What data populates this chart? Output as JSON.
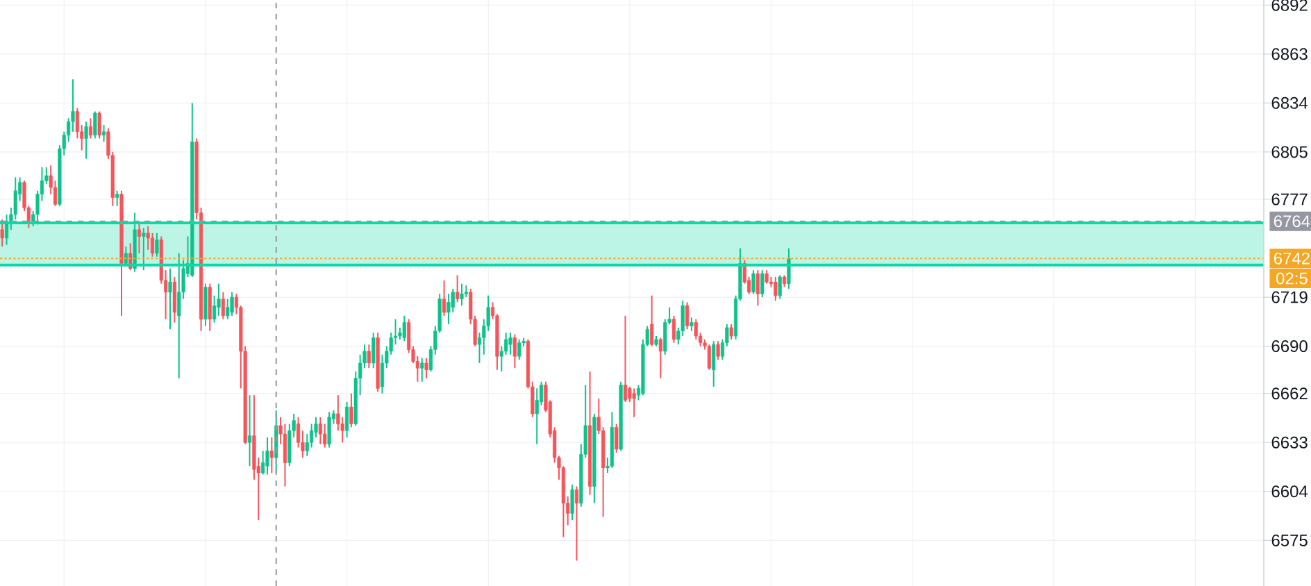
{
  "chart_data": {
    "type": "candlestick",
    "categories": [
      null,
      null,
      null,
      null,
      null,
      null,
      null,
      null,
      null,
      null,
      null,
      null,
      null,
      null,
      null,
      null,
      null,
      null,
      null,
      null,
      null,
      null,
      null,
      null,
      null,
      null,
      null,
      null,
      null,
      null,
      null,
      null,
      null,
      null,
      null,
      null,
      null,
      null,
      null,
      null,
      null,
      null,
      null,
      null,
      null,
      null,
      null,
      null,
      null,
      null,
      null,
      null,
      null,
      null,
      null,
      null,
      null,
      null,
      null,
      null,
      null,
      null,
      null,
      null,
      null,
      null,
      null,
      null,
      null,
      null,
      null,
      null,
      null,
      null,
      null,
      null,
      null,
      null,
      null,
      null,
      null,
      null,
      null,
      null,
      null,
      null,
      null,
      null,
      null,
      null,
      null,
      null,
      null,
      null,
      null,
      null,
      null,
      null,
      null,
      null,
      null,
      null,
      null,
      null,
      null,
      null,
      null,
      null,
      null,
      null,
      null,
      null,
      null,
      null,
      null,
      null,
      null,
      null,
      null,
      null,
      null,
      null,
      null,
      null,
      null,
      null,
      null,
      null,
      null,
      null,
      null,
      null,
      null,
      null,
      null,
      null,
      null,
      null,
      null,
      null,
      null,
      null,
      null,
      null,
      null,
      null,
      null,
      null,
      null,
      null,
      null,
      null,
      null,
      null,
      null,
      null,
      null,
      null,
      null,
      null,
      null,
      null,
      null,
      null,
      null,
      null,
      null,
      null,
      null,
      null,
      null,
      null,
      null,
      null,
      null,
      null,
      null,
      null,
      null,
      null,
      null,
      null,
      null,
      null,
      null,
      null,
      null,
      null,
      null,
      null,
      null,
      null,
      null,
      null,
      null,
      null,
      null,
      null,
      null,
      null,
      null,
      null,
      null,
      null,
      null,
      null,
      null,
      null,
      null,
      null,
      null,
      null,
      null,
      null,
      null,
      null,
      null,
      null,
      null,
      null,
      null,
      null,
      null,
      null,
      null,
      null,
      null,
      null,
      null,
      null,
      null,
      null,
      null,
      null,
      null,
      null,
      null,
      null,
      null,
      null,
      null,
      null,
      null,
      null,
      null,
      null,
      null,
      null,
      null,
      null,
      null,
      null,
      null,
      null,
      null,
      null,
      null,
      null,
      null,
      null,
      null,
      null,
      null,
      null,
      null,
      null,
      null,
      null,
      null,
      null,
      null,
      null,
      null,
      null,
      null,
      null,
      null,
      null,
      null,
      null,
      null,
      null,
      null,
      null,
      null,
      null
    ],
    "ohlc": [
      [
        6759,
        6765,
        6749,
        6754
      ],
      [
        6754,
        6768,
        6750,
        6764
      ],
      [
        6764,
        6772,
        6759,
        6768
      ],
      [
        6768,
        6790,
        6765,
        6782
      ],
      [
        6780,
        6790,
        6776,
        6787
      ],
      [
        6787,
        6788,
        6770,
        6772
      ],
      [
        6772,
        6773,
        6760,
        6764
      ],
      [
        6764,
        6770,
        6761,
        6768
      ],
      [
        6768,
        6782,
        6762,
        6780
      ],
      [
        6780,
        6796,
        6776,
        6788
      ],
      [
        6788,
        6796,
        6786,
        6791
      ],
      [
        6791,
        6797,
        6780,
        6784
      ],
      [
        6784,
        6788,
        6773,
        6774
      ],
      [
        6774,
        6809,
        6773,
        6807
      ],
      [
        6807,
        6817,
        6803,
        6815
      ],
      [
        6815,
        6825,
        6811,
        6823
      ],
      [
        6823,
        6848,
        6817,
        6829
      ],
      [
        6829,
        6831,
        6813,
        6817
      ],
      [
        6817,
        6821,
        6806,
        6813
      ],
      [
        6813,
        6823,
        6801,
        6820
      ],
      [
        6820,
        6825,
        6813,
        6815
      ],
      [
        6815,
        6829,
        6813,
        6828
      ],
      [
        6828,
        6829,
        6813,
        6815
      ],
      [
        6815,
        6821,
        6811,
        6817
      ],
      [
        6817,
        6819,
        6801,
        6803
      ],
      [
        6803,
        6805,
        6773,
        6778
      ],
      [
        6778,
        6782,
        6773,
        6780
      ],
      [
        6780,
        6782,
        6708,
        6739
      ],
      [
        6739,
        6749,
        6737,
        6745
      ],
      [
        6745,
        6751,
        6735,
        6736
      ],
      [
        6736,
        6769,
        6734,
        6759
      ],
      [
        6759,
        6764,
        6745,
        6755
      ],
      [
        6755,
        6760,
        6735,
        6757
      ],
      [
        6757,
        6761,
        6747,
        6754
      ],
      [
        6754,
        6757,
        6743,
        6745
      ],
      [
        6745,
        6757,
        6743,
        6753
      ],
      [
        6753,
        6755,
        6727,
        6729
      ],
      [
        6729,
        6735,
        6706,
        6722
      ],
      [
        6722,
        6736,
        6700,
        6728
      ],
      [
        6728,
        6731,
        6704,
        6710
      ],
      [
        6708,
        6745,
        6671,
        6722
      ],
      [
        6722,
        6741,
        6718,
        6736
      ],
      [
        6733,
        6755,
        6731,
        6739
      ],
      [
        6732,
        6834,
        6731,
        6811
      ],
      [
        6811,
        6813,
        6765,
        6769
      ],
      [
        6769,
        6772,
        6699,
        6706
      ],
      [
        6706,
        6727,
        6702,
        6725
      ],
      [
        6725,
        6727,
        6699,
        6706
      ],
      [
        6706,
        6720,
        6704,
        6714
      ],
      [
        6713,
        6727,
        6708,
        6718
      ],
      [
        6718,
        6722,
        6706,
        6708
      ],
      [
        6708,
        6718,
        6706,
        6713
      ],
      [
        6710,
        6722,
        6708,
        6719
      ],
      [
        6719,
        6721,
        6709,
        6713
      ],
      [
        6713,
        6714,
        6665,
        6687
      ],
      [
        6687,
        6690,
        6632,
        6633
      ],
      [
        6633,
        6661,
        6619,
        6637
      ],
      [
        6637,
        6661,
        6611,
        6617
      ],
      [
        6619,
        6624,
        6587,
        6615
      ],
      [
        6615,
        6628,
        6614,
        6621
      ],
      [
        6619,
        6636,
        6614,
        6628
      ],
      [
        6628,
        6636,
        6615,
        6624
      ],
      [
        6624,
        6652,
        6615,
        6643
      ],
      [
        6643,
        6648,
        6632,
        6638
      ],
      [
        6638,
        6644,
        6607,
        6621
      ],
      [
        6621,
        6644,
        6619,
        6640
      ],
      [
        6640,
        6650,
        6636,
        6646
      ],
      [
        6644,
        6648,
        6630,
        6633
      ],
      [
        6633,
        6640,
        6624,
        6628
      ],
      [
        6628,
        6638,
        6625,
        6633
      ],
      [
        6633,
        6644,
        6630,
        6640
      ],
      [
        6639,
        6648,
        6636,
        6644
      ],
      [
        6644,
        6648,
        6632,
        6638
      ],
      [
        6638,
        6644,
        6630,
        6632
      ],
      [
        6632,
        6651,
        6630,
        6648
      ],
      [
        6647,
        6652,
        6644,
        6650
      ],
      [
        6650,
        6661,
        6640,
        6644
      ],
      [
        6644,
        6648,
        6633,
        6640
      ],
      [
        6640,
        6657,
        6636,
        6654
      ],
      [
        6654,
        6662,
        6642,
        6644
      ],
      [
        6644,
        6675,
        6643,
        6671
      ],
      [
        6671,
        6685,
        6661,
        6680
      ],
      [
        6680,
        6691,
        6677,
        6687
      ],
      [
        6687,
        6691,
        6677,
        6680
      ],
      [
        6680,
        6698,
        6677,
        6695
      ],
      [
        6695,
        6698,
        6663,
        6665
      ],
      [
        6666,
        6685,
        6662,
        6680
      ],
      [
        6680,
        6690,
        6677,
        6687
      ],
      [
        6687,
        6698,
        6685,
        6695
      ],
      [
        6695,
        6706,
        6691,
        6696
      ],
      [
        6696,
        6701,
        6694,
        6698
      ],
      [
        6695,
        6708,
        6693,
        6704
      ],
      [
        6704,
        6706,
        6686,
        6688
      ],
      [
        6688,
        6690,
        6680,
        6681
      ],
      [
        6681,
        6684,
        6669,
        6677
      ],
      [
        6677,
        6683,
        6669,
        6680
      ],
      [
        6680,
        6683,
        6671,
        6676
      ],
      [
        6676,
        6690,
        6675,
        6688
      ],
      [
        6688,
        6702,
        6685,
        6699
      ],
      [
        6699,
        6721,
        6698,
        6718
      ],
      [
        6718,
        6729,
        6708,
        6710
      ],
      [
        6710,
        6721,
        6703,
        6716
      ],
      [
        6713,
        6724,
        6710,
        6722
      ],
      [
        6722,
        6732,
        6716,
        6718
      ],
      [
        6718,
        6727,
        6714,
        6721
      ],
      [
        6721,
        6726,
        6719,
        6722
      ],
      [
        6722,
        6724,
        6703,
        6706
      ],
      [
        6706,
        6708,
        6690,
        6691
      ],
      [
        6691,
        6698,
        6680,
        6695
      ],
      [
        6695,
        6706,
        6685,
        6702
      ],
      [
        6702,
        6720,
        6699,
        6713
      ],
      [
        6713,
        6716,
        6706,
        6708
      ],
      [
        6708,
        6709,
        6676,
        6684
      ],
      [
        6684,
        6690,
        6675,
        6687
      ],
      [
        6687,
        6698,
        6685,
        6694
      ],
      [
        6691,
        6698,
        6685,
        6695
      ],
      [
        6695,
        6697,
        6677,
        6684
      ],
      [
        6684,
        6694,
        6682,
        6692
      ],
      [
        6692,
        6695,
        6690,
        6693
      ],
      [
        6693,
        6694,
        6665,
        6666
      ],
      [
        6666,
        6669,
        6648,
        6650
      ],
      [
        6650,
        6665,
        6632,
        6658
      ],
      [
        6657,
        6669,
        6655,
        6667
      ],
      [
        6667,
        6669,
        6651,
        6652
      ],
      [
        6657,
        6658,
        6636,
        6638
      ],
      [
        6640,
        6642,
        6621,
        6624
      ],
      [
        6624,
        6625,
        6611,
        6618
      ],
      [
        6618,
        6619,
        6577,
        6597
      ],
      [
        6597,
        6601,
        6584,
        6591
      ],
      [
        6591,
        6608,
        6587,
        6605
      ],
      [
        6605,
        6607,
        6563,
        6597
      ],
      [
        6597,
        6632,
        6595,
        6626
      ],
      [
        6626,
        6667,
        6624,
        6643
      ],
      [
        6643,
        6675,
        6602,
        6607
      ],
      [
        6607,
        6650,
        6597,
        6648
      ],
      [
        6648,
        6659,
        6638,
        6640
      ],
      [
        6640,
        6642,
        6589,
        6618
      ],
      [
        6618,
        6624,
        6615,
        6619
      ],
      [
        6619,
        6651,
        6618,
        6642
      ],
      [
        6642,
        6644,
        6627,
        6629
      ],
      [
        6629,
        6669,
        6628,
        6667
      ],
      [
        6667,
        6708,
        6657,
        6658
      ],
      [
        6665,
        6666,
        6657,
        6659
      ],
      [
        6662,
        6665,
        6648,
        6659
      ],
      [
        6661,
        6667,
        6658,
        6665
      ],
      [
        6662,
        6694,
        6661,
        6691
      ],
      [
        6691,
        6702,
        6690,
        6700
      ],
      [
        6703,
        6720,
        6690,
        6691
      ],
      [
        6691,
        6696,
        6690,
        6694
      ],
      [
        6694,
        6695,
        6671,
        6687
      ],
      [
        6687,
        6706,
        6685,
        6704
      ],
      [
        6704,
        6713,
        6703,
        6706
      ],
      [
        6706,
        6708,
        6692,
        6694
      ],
      [
        6694,
        6701,
        6691,
        6699
      ],
      [
        6699,
        6717,
        6696,
        6714
      ],
      [
        6714,
        6716,
        6700,
        6702
      ],
      [
        6702,
        6707,
        6699,
        6704
      ],
      [
        6704,
        6706,
        6694,
        6696
      ],
      [
        6696,
        6698,
        6690,
        6692
      ],
      [
        6692,
        6694,
        6688,
        6690
      ],
      [
        6690,
        6691,
        6676,
        6677
      ],
      [
        6676,
        6693,
        6666,
        6691
      ],
      [
        6691,
        6693,
        6682,
        6684
      ],
      [
        6684,
        6694,
        6682,
        6692
      ],
      [
        6692,
        6703,
        6690,
        6701
      ],
      [
        6701,
        6703,
        6694,
        6696
      ],
      [
        6696,
        6720,
        6694,
        6718
      ],
      [
        6718,
        6748,
        6717,
        6739
      ],
      [
        6739,
        6741,
        6727,
        6728
      ],
      [
        6729,
        6731,
        6721,
        6722
      ],
      [
        6722,
        6735,
        6721,
        6733
      ],
      [
        6733,
        6735,
        6714,
        6721
      ],
      [
        6721,
        6735,
        6719,
        6733
      ],
      [
        6733,
        6735,
        6727,
        6728
      ],
      [
        6728,
        6731,
        6725,
        6727
      ],
      [
        6728,
        6731,
        6717,
        6720
      ],
      [
        6720,
        6732,
        6718,
        6731
      ],
      [
        6731,
        6732,
        6725,
        6727
      ],
      [
        6727,
        6748,
        6724,
        6742
      ],
      null,
      null,
      null,
      null,
      null,
      null,
      null,
      null,
      null,
      null,
      null,
      null,
      null,
      null,
      null,
      null,
      null,
      null,
      null,
      null,
      null,
      null,
      null,
      null,
      null,
      null,
      null,
      null,
      null,
      null,
      null,
      null,
      null,
      null,
      null,
      null,
      null,
      null,
      null,
      null,
      null,
      null,
      null,
      null,
      null,
      null,
      null,
      null,
      null,
      null,
      null,
      null,
      null,
      null,
      null,
      null,
      null,
      null,
      null,
      null,
      null,
      null,
      null,
      null,
      null,
      null,
      null,
      null,
      null,
      null,
      null,
      null,
      null,
      null,
      null,
      null,
      null,
      null,
      null,
      null,
      null,
      null,
      null,
      null,
      null,
      null,
      null,
      null,
      null,
      null,
      null,
      null,
      null,
      null,
      null,
      null,
      null,
      null,
      null,
      null,
      null,
      null,
      null,
      null,
      null,
      null,
      null
    ],
    "colors": [
      "#f6545b",
      "#0fc28b",
      "#0fc28b",
      "#0fc28b",
      "#0fc28b",
      "#f6545b",
      "#f6545b",
      "#0fc28b",
      "#0fc28b",
      "#0fc28b",
      "#0fc28b",
      "#f6545b",
      "#f6545b",
      "#0fc28b",
      "#0fc28b",
      "#0fc28b",
      "#0fc28b",
      "#f6545b",
      "#f6545b",
      "#0fc28b",
      "#f6545b",
      "#0fc28b",
      "#f6545b",
      "#0fc28b",
      "#f6545b",
      "#f6545b",
      "#0fc28b",
      "#f6545b",
      "#0fc28b",
      "#f6545b",
      "#0fc28b",
      "#f6545b",
      "#0fc28b",
      "#f6545b",
      "#f6545b",
      "#0fc28b",
      "#f6545b",
      "#f6545b",
      "#0fc28b",
      "#f6545b",
      "#0fc28b",
      "#0fc28b",
      "#0fc28b",
      "#0fc28b",
      "#f6545b",
      "#f6545b",
      "#0fc28b",
      "#f6545b",
      "#0fc28b",
      "#0fc28b",
      "#f6545b",
      "#0fc28b",
      "#0fc28b",
      "#f6545b",
      "#f6545b",
      "#f6545b",
      "#0fc28b",
      "#f6545b",
      "#f6545b",
      "#0fc28b",
      "#0fc28b",
      "#f6545b",
      "#0fc28b",
      "#f6545b",
      "#f6545b",
      "#0fc28b",
      "#0fc28b",
      "#f6545b",
      "#f6545b",
      "#0fc28b",
      "#0fc28b",
      "#0fc28b",
      "#f6545b",
      "#f6545b",
      "#0fc28b",
      "#0fc28b",
      "#f6545b",
      "#f6545b",
      "#0fc28b",
      "#f6545b",
      "#0fc28b",
      "#0fc28b",
      "#0fc28b",
      "#f6545b",
      "#0fc28b",
      "#f6545b",
      "#0fc28b",
      "#0fc28b",
      "#0fc28b",
      "#0fc28b",
      "#0fc28b",
      "#0fc28b",
      "#f6545b",
      "#f6545b",
      "#f6545b",
      "#0fc28b",
      "#f6545b",
      "#0fc28b",
      "#0fc28b",
      "#0fc28b",
      "#f6545b",
      "#0fc28b",
      "#0fc28b",
      "#f6545b",
      "#0fc28b",
      "#0fc28b",
      "#f6545b",
      "#f6545b",
      "#0fc28b",
      "#0fc28b",
      "#0fc28b",
      "#f6545b",
      "#f6545b",
      "#0fc28b",
      "#0fc28b",
      "#0fc28b",
      "#f6545b",
      "#0fc28b",
      "#0fc28b",
      "#f6545b",
      "#f6545b",
      "#0fc28b",
      "#0fc28b",
      "#f6545b",
      "#f6545b",
      "#f6545b",
      "#f6545b",
      "#f6545b",
      "#f6545b",
      "#0fc28b",
      "#f6545b",
      "#0fc28b",
      "#0fc28b",
      "#f6545b",
      "#0fc28b",
      "#f6545b",
      "#f6545b",
      "#0fc28b",
      "#0fc28b",
      "#f6545b",
      "#0fc28b",
      "#f6545b",
      "#f6545b",
      "#f6545b",
      "#0fc28b",
      "#0fc28b",
      "#0fc28b",
      "#f6545b",
      "#0fc28b",
      "#f6545b",
      "#0fc28b",
      "#0fc28b",
      "#f6545b",
      "#0fc28b",
      "#0fc28b",
      "#f6545b",
      "#0fc28b",
      "#f6545b",
      "#f6545b",
      "#f6545b",
      "#f6545b",
      "#0fc28b",
      "#f6545b",
      "#0fc28b",
      "#0fc28b",
      "#f6545b",
      "#0fc28b",
      "#0fc28b",
      "#f6545b",
      "#f6545b",
      "#0fc28b",
      "#f6545b",
      "#0fc28b",
      "#f6545b",
      "#f6545b",
      "#f6545b",
      "#0fc28b",
      "#f6545b",
      "#0fc28b",
      null,
      null,
      null,
      null,
      null,
      null,
      null,
      null,
      null,
      null,
      null,
      null,
      null,
      null,
      null,
      null,
      null,
      null,
      null,
      null,
      null,
      null,
      null,
      null,
      null,
      null,
      null,
      null,
      null,
      null,
      null,
      null,
      null,
      null,
      null,
      null,
      null,
      null,
      null,
      null,
      null,
      null,
      null,
      null,
      null,
      null,
      null,
      null,
      null,
      null,
      null,
      null,
      null,
      null,
      null,
      null,
      null,
      null,
      null,
      null,
      null,
      null,
      null,
      null,
      null,
      null,
      null,
      null,
      null,
      null,
      null,
      null,
      null,
      null,
      null,
      null,
      null,
      null,
      null,
      null,
      null,
      null,
      null,
      null,
      null,
      null,
      null,
      null,
      null,
      null,
      null,
      null,
      null,
      null,
      null,
      null,
      null,
      null,
      null,
      null,
      null,
      null,
      null,
      null,
      null,
      null,
      null
    ],
    "ylim": [
      6548,
      6895
    ],
    "yticks": [
      6575,
      6604,
      6633,
      6662,
      6690,
      6719,
      6777,
      6805,
      6834,
      6863,
      6892
    ],
    "tick_labels": "y",
    "grid": true,
    "ref_lines": [
      {
        "axis": "y",
        "value": 6763,
        "color": "#10d8a5",
        "line_style": "solid"
      },
      {
        "axis": "y",
        "value": 6738,
        "color": "#10d8a5",
        "line_style": "solid"
      },
      {
        "axis": "y",
        "value": 6764,
        "label": "6764",
        "color": "#9598a1",
        "line_style": "dashed"
      },
      {
        "axis": "y",
        "value": 6742,
        "label": "6742",
        "color": "#f5a623",
        "line_style": "dotted"
      }
    ],
    "bands": [
      {
        "axis": "y",
        "from": 6738,
        "to": 6763,
        "color": "#bcf4e6"
      }
    ],
    "annotations": [
      "02:5"
    ]
  }
}
